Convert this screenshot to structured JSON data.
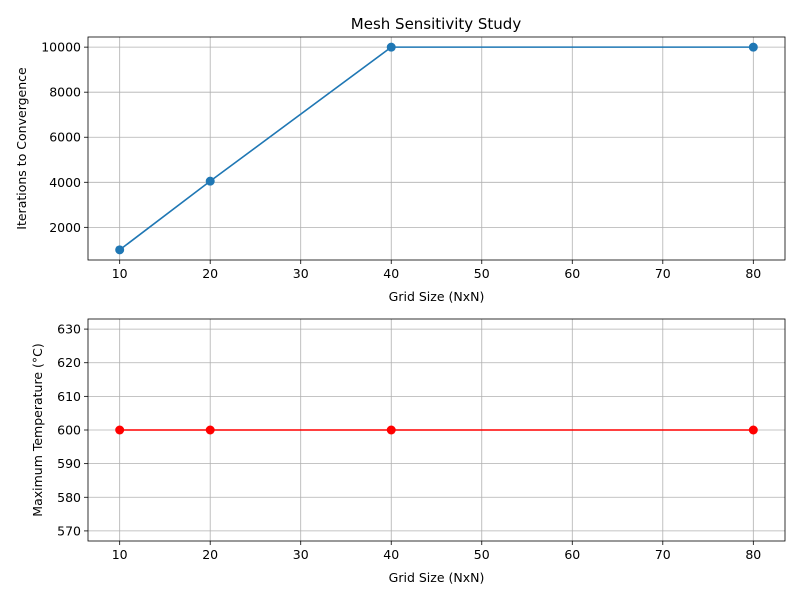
{
  "chart_data": [
    {
      "type": "line",
      "title": "Mesh Sensitivity Study",
      "xlabel": "Grid Size (NxN)",
      "ylabel": "Iterations to Convergence",
      "x": [
        10,
        20,
        40,
        80
      ],
      "series": [
        {
          "values": [
            1000,
            4050,
            10000,
            10000
          ],
          "color": "#1f77b4",
          "marker": "circle"
        }
      ],
      "xlim": [
        6.5,
        83.5
      ],
      "ylim": [
        550,
        10450
      ],
      "xticks": [
        10,
        20,
        30,
        40,
        50,
        60,
        70,
        80
      ],
      "yticks": [
        2000,
        4000,
        6000,
        8000,
        10000
      ],
      "grid": true
    },
    {
      "type": "line",
      "title": "",
      "xlabel": "Grid Size (NxN)",
      "ylabel": "Maximum Temperature (°C)",
      "x": [
        10,
        20,
        40,
        80
      ],
      "series": [
        {
          "values": [
            600,
            600,
            600,
            600
          ],
          "color": "#ff0000",
          "marker": "circle"
        }
      ],
      "xlim": [
        6.5,
        83.5
      ],
      "ylim": [
        567,
        633
      ],
      "xticks": [
        10,
        20,
        30,
        40,
        50,
        60,
        70,
        80
      ],
      "yticks": [
        570,
        580,
        590,
        600,
        610,
        620,
        630
      ],
      "grid": true
    }
  ]
}
